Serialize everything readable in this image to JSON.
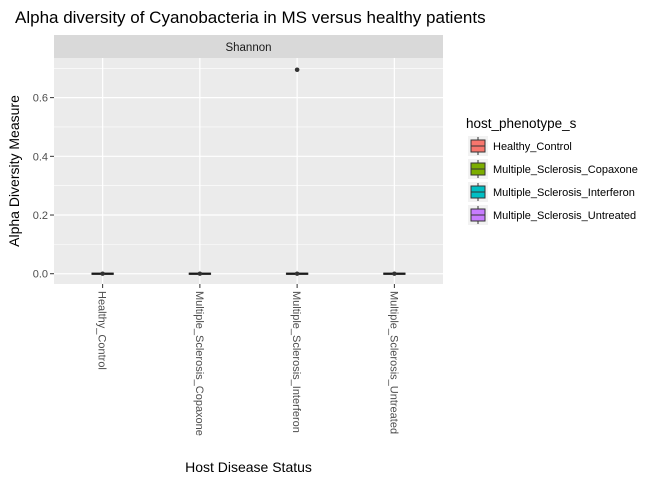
{
  "chart_data": {
    "type": "box",
    "title": "Alpha diversity of Cyanobacteria in MS versus healthy patients",
    "facet_label": "Shannon",
    "xlabel": "Host Disease Status",
    "ylabel": "Alpha Diversity Measure",
    "categories": [
      "Healthy_Control",
      "Multiple_Sclerosis_Copaxone",
      "Multiple_Sclerosis_Interferon",
      "Multiple_Sclerosis_Untreated"
    ],
    "ylim": [
      -0.035,
      0.735
    ],
    "yticks": [
      0.0,
      0.2,
      0.4,
      0.6
    ],
    "ytick_labels": [
      "0.0",
      "0.2",
      "0.4",
      "0.6"
    ],
    "series": [
      {
        "name": "Healthy_Control",
        "color": "#F8766D",
        "median": 0.0,
        "q1": 0.0,
        "q3": 0.0,
        "whisker_low": 0.0,
        "whisker_high": 0.0,
        "outliers": []
      },
      {
        "name": "Multiple_Sclerosis_Copaxone",
        "color": "#7CAE00",
        "median": 0.0,
        "q1": 0.0,
        "q3": 0.0,
        "whisker_low": 0.0,
        "whisker_high": 0.0,
        "outliers": []
      },
      {
        "name": "Multiple_Sclerosis_Interferon",
        "color": "#00BFC4",
        "median": 0.0,
        "q1": 0.0,
        "q3": 0.0,
        "whisker_low": 0.0,
        "whisker_high": 0.0,
        "outliers": [
          0.695
        ]
      },
      {
        "name": "Multiple_Sclerosis_Untreated",
        "color": "#C77CFF",
        "median": 0.0,
        "q1": 0.0,
        "q3": 0.0,
        "whisker_low": 0.0,
        "whisker_high": 0.0,
        "outliers": []
      }
    ],
    "legend": {
      "title": "host_phenotype_s",
      "position": "right",
      "entries": [
        "Healthy_Control",
        "Multiple_Sclerosis_Copaxone",
        "Multiple_Sclerosis_Interferon",
        "Multiple_Sclerosis_Untreated"
      ]
    },
    "grid": true,
    "panel_background": "#EBEBEB",
    "strip_background": "#D9D9D9"
  }
}
